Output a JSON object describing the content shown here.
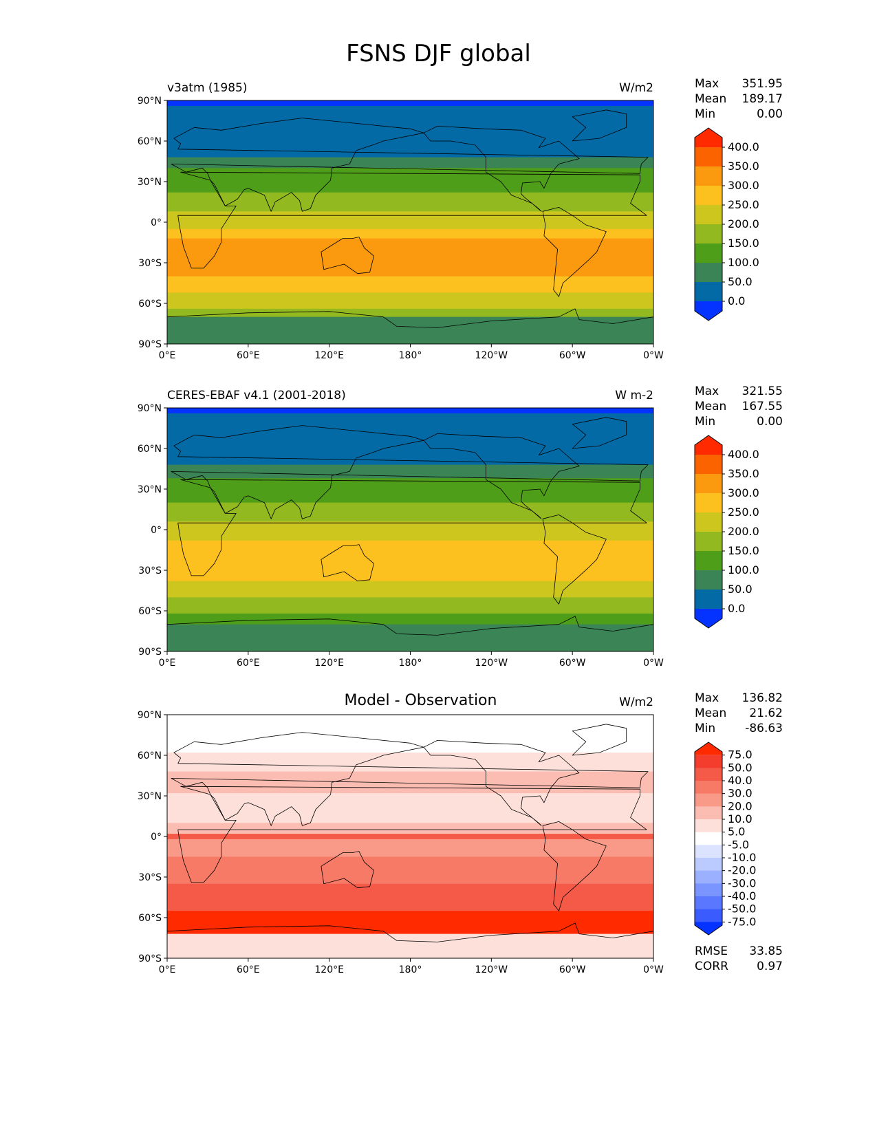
{
  "figure": {
    "title": "FSNS DJF global"
  },
  "axes": {
    "lat_ticks": [
      "90°N",
      "60°N",
      "30°N",
      "0°",
      "30°S",
      "60°S",
      "90°S"
    ],
    "lon_ticks": [
      "0°E",
      "60°E",
      "120°E",
      "180°",
      "120°W",
      "60°W",
      "0°W"
    ]
  },
  "panels": [
    {
      "id": "test",
      "label": "v3atm (1985)",
      "units": "W/m2",
      "stats": [
        {
          "label": "Max",
          "value": "351.95"
        },
        {
          "label": "Mean",
          "value": "189.17"
        },
        {
          "label": "Min",
          "value": "0.00"
        }
      ],
      "colorbar": {
        "labels": [
          "400.0",
          "350.0",
          "300.0",
          "250.0",
          "200.0",
          "150.0",
          "100.0",
          "50.0",
          "0.0"
        ],
        "colors": [
          "#ff2a00",
          "#fb6300",
          "#fb9a0e",
          "#fcc11e",
          "#ccc61f",
          "#92b91f",
          "#4f9e1a",
          "#3b8455",
          "#046aa6",
          "#0433ff"
        ]
      },
      "bands": [
        {
          "from": 90,
          "to": 86,
          "color": "#0433ff"
        },
        {
          "from": 86,
          "to": 48,
          "color": "#046aa6"
        },
        {
          "from": 48,
          "to": 40,
          "color": "#3b8455"
        },
        {
          "from": 40,
          "to": 22,
          "color": "#4f9e1a"
        },
        {
          "from": 22,
          "to": 8,
          "color": "#92b91f"
        },
        {
          "from": 8,
          "to": -5,
          "color": "#ccc61f"
        },
        {
          "from": -5,
          "to": -12,
          "color": "#fcc11e"
        },
        {
          "from": -12,
          "to": -40,
          "color": "#fb9a0e"
        },
        {
          "from": -40,
          "to": -52,
          "color": "#fcc11e"
        },
        {
          "from": -52,
          "to": -64,
          "color": "#ccc61f"
        },
        {
          "from": -64,
          "to": -70,
          "color": "#92b91f"
        },
        {
          "from": -70,
          "to": -90,
          "color": "#3b8455"
        }
      ]
    },
    {
      "id": "reference",
      "label": "CERES-EBAF v4.1 (2001-2018)",
      "units": "W m-2",
      "stats": [
        {
          "label": "Max",
          "value": "321.55"
        },
        {
          "label": "Mean",
          "value": "167.55"
        },
        {
          "label": "Min",
          "value": "0.00"
        }
      ],
      "colorbar": {
        "labels": [
          "400.0",
          "350.0",
          "300.0",
          "250.0",
          "200.0",
          "150.0",
          "100.0",
          "50.0",
          "0.0"
        ],
        "colors": [
          "#ff2a00",
          "#fb6300",
          "#fb9a0e",
          "#fcc11e",
          "#ccc61f",
          "#92b91f",
          "#4f9e1a",
          "#3b8455",
          "#046aa6",
          "#0433ff"
        ]
      },
      "bands": [
        {
          "from": 90,
          "to": 86,
          "color": "#0433ff"
        },
        {
          "from": 86,
          "to": 48,
          "color": "#046aa6"
        },
        {
          "from": 48,
          "to": 38,
          "color": "#3b8455"
        },
        {
          "from": 38,
          "to": 20,
          "color": "#4f9e1a"
        },
        {
          "from": 20,
          "to": 6,
          "color": "#92b91f"
        },
        {
          "from": 6,
          "to": -8,
          "color": "#ccc61f"
        },
        {
          "from": -8,
          "to": -38,
          "color": "#fcc11e"
        },
        {
          "from": -38,
          "to": -50,
          "color": "#ccc61f"
        },
        {
          "from": -50,
          "to": -62,
          "color": "#92b91f"
        },
        {
          "from": -62,
          "to": -70,
          "color": "#4f9e1a"
        },
        {
          "from": -70,
          "to": -90,
          "color": "#3b8455"
        }
      ]
    },
    {
      "id": "diff",
      "label": "",
      "center_title": "Model - Observation",
      "units": "W/m2",
      "stats": [
        {
          "label": "Max",
          "value": "136.82"
        },
        {
          "label": "Mean",
          "value": "21.62"
        },
        {
          "label": "Min",
          "value": "-86.63"
        }
      ],
      "extra_stats": [
        {
          "label": "RMSE",
          "value": "33.85"
        },
        {
          "label": "CORR",
          "value": "0.97"
        }
      ],
      "colorbar": {
        "labels": [
          "75.0",
          "50.0",
          "40.0",
          "30.0",
          "20.0",
          "10.0",
          "5.0",
          "-5.0",
          "-10.0",
          "-20.0",
          "-30.0",
          "-40.0",
          "-50.0",
          "-75.0"
        ],
        "colors": [
          "#ff2a00",
          "#f43d2d",
          "#f55a48",
          "#f77a66",
          "#f99a89",
          "#fbbcb1",
          "#fde0da",
          "#ffffff",
          "#dbe3ff",
          "#bccbff",
          "#9bb0ff",
          "#7a95ff",
          "#5a78ff",
          "#3a5cff",
          "#0433ff"
        ]
      },
      "bands": [
        {
          "from": 90,
          "to": 62,
          "color": "#ffffff"
        },
        {
          "from": 62,
          "to": 48,
          "color": "#fde0da"
        },
        {
          "from": 48,
          "to": 32,
          "color": "#fbbcb1"
        },
        {
          "from": 32,
          "to": 10,
          "color": "#fde0da"
        },
        {
          "from": 10,
          "to": 2,
          "color": "#fbbcb1"
        },
        {
          "from": 2,
          "to": -2,
          "color": "#f55a48"
        },
        {
          "from": -2,
          "to": -15,
          "color": "#f99a89"
        },
        {
          "from": -15,
          "to": -35,
          "color": "#f77a66"
        },
        {
          "from": -35,
          "to": -55,
          "color": "#f55a48"
        },
        {
          "from": -55,
          "to": -72,
          "color": "#ff2a00"
        },
        {
          "from": -72,
          "to": -90,
          "color": "#fde0da"
        }
      ]
    }
  ]
}
